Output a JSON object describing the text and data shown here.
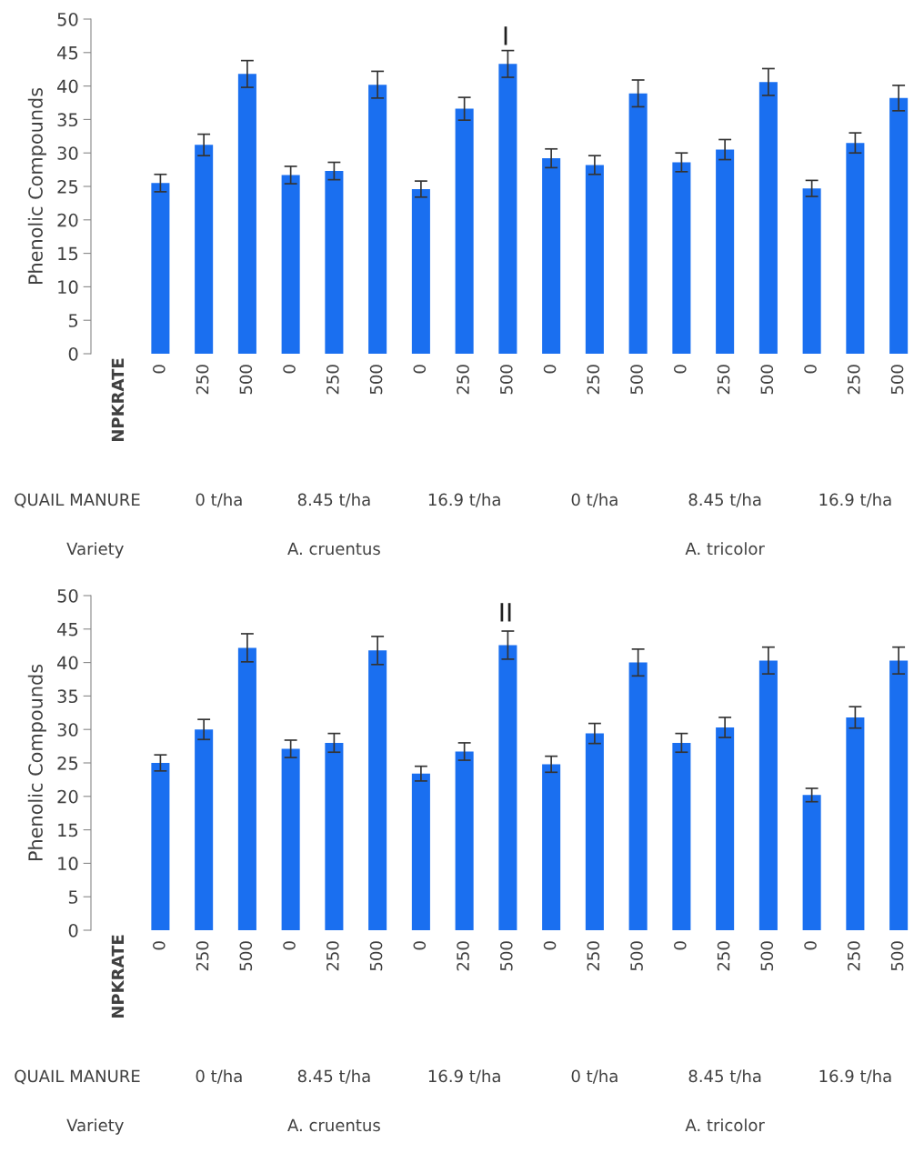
{
  "chart_data": [
    {
      "type": "bar",
      "title": "I",
      "ylabel": "Phenolic Compounds",
      "categories": [
        "0",
        "250",
        "500",
        "0",
        "250",
        "500",
        "0",
        "250",
        "500",
        "0",
        "250",
        "500",
        "0",
        "250",
        "500",
        "0",
        "250",
        "500"
      ],
      "values": [
        25.5,
        31.2,
        41.8,
        26.7,
        27.3,
        40.2,
        24.6,
        36.6,
        43.3,
        29.2,
        28.2,
        38.9,
        28.6,
        30.5,
        40.6,
        24.7,
        31.5,
        38.2
      ],
      "errors": [
        1.3,
        1.6,
        2,
        1.3,
        1.3,
        2,
        1.2,
        1.7,
        2,
        1.4,
        1.4,
        2,
        1.4,
        1.5,
        2,
        1.2,
        1.5,
        1.9
      ],
      "color": "#1a6ff0",
      "ylim": [
        0,
        50
      ],
      "yticks": [
        0,
        5,
        10,
        15,
        20,
        25,
        30,
        35,
        40,
        45,
        50
      ],
      "grid": false,
      "annotations": [
        "NPKRATE",
        "QUAIL MANURE",
        "0 t/ha",
        "8.45 t/ha",
        "16.9 t/ha",
        "0 t/ha",
        "8.45 t/ha",
        "16.9 t/ha",
        "Variety",
        "A. cruentus",
        "A. tricolor"
      ]
    },
    {
      "type": "bar",
      "title": "II",
      "ylabel": "Phenolic Compounds",
      "categories": [
        "0",
        "250",
        "500",
        "0",
        "250",
        "500",
        "0",
        "250",
        "500",
        "0",
        "250",
        "500",
        "0",
        "250",
        "500",
        "0",
        "250",
        "500"
      ],
      "values": [
        25.0,
        30.0,
        42.2,
        27.1,
        28.0,
        41.8,
        23.4,
        26.7,
        42.6,
        24.8,
        29.4,
        40.0,
        28.0,
        30.3,
        40.3,
        20.2,
        31.8,
        40.3
      ],
      "errors": [
        1.2,
        1.5,
        2.1,
        1.3,
        1.4,
        2.1,
        1.1,
        1.3,
        2.1,
        1.2,
        1.5,
        2,
        1.4,
        1.5,
        2,
        1.0,
        1.6,
        2
      ],
      "color": "#1a6ff0",
      "ylim": [
        0,
        50
      ],
      "yticks": [
        0,
        5,
        10,
        15,
        20,
        25,
        30,
        35,
        40,
        45,
        50
      ],
      "grid": false,
      "annotations": [
        "NPKRATE",
        "QUAIL MANURE",
        "0 t/ha",
        "8.45 t/ha",
        "16.9 t/ha",
        "0 t/ha",
        "8.45 t/ha",
        "16.9 t/ha",
        "Variety",
        "A. cruentus",
        "A. tricolor"
      ]
    }
  ]
}
